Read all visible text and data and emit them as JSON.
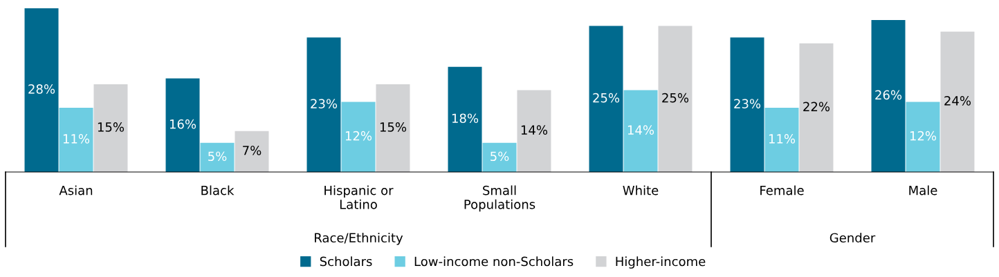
{
  "chart_data": {
    "type": "bar",
    "categories": [
      "Asian",
      "Black",
      "Hispanic or\nLatino",
      "Small\nPopulations",
      "White",
      "Female",
      "Male"
    ],
    "series": [
      {
        "name": "Scholars",
        "color": "#006a8e",
        "values": [
          28,
          16,
          23,
          18,
          25,
          23,
          26
        ],
        "value_labels": [
          "28%",
          "16%",
          "23%",
          "18%",
          "25%",
          "23%",
          "26%"
        ]
      },
      {
        "name": "Low-income non-Scholars",
        "color": "#6dcde2",
        "values": [
          11,
          5,
          12,
          5,
          14,
          11,
          12
        ],
        "value_labels": [
          "11%",
          "5%",
          "12%",
          "5%",
          "14%",
          "11%",
          "12%"
        ]
      },
      {
        "name": "Higher-income",
        "color": "#d2d3d5",
        "values": [
          15,
          7,
          15,
          14,
          25,
          22,
          24
        ],
        "value_labels": [
          "15%",
          "7%",
          "15%",
          "14%",
          "25%",
          "22%",
          "24%"
        ]
      }
    ],
    "annotations": [
      "Race/Ethnicity",
      "Gender"
    ],
    "grid": false,
    "legend": "bottom"
  }
}
